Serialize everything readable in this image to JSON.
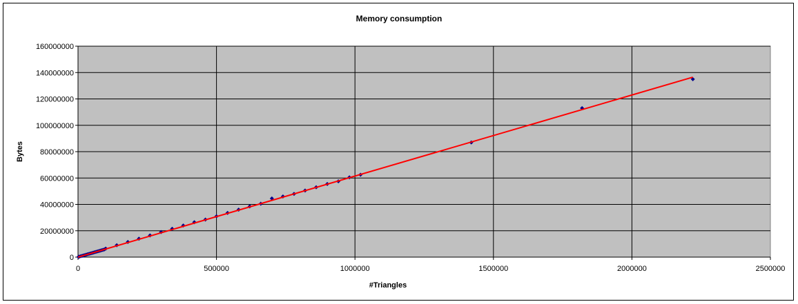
{
  "chart_data": {
    "type": "scatter",
    "title": "Memory consumption",
    "xlabel": "#Triangles",
    "ylabel": "Bytes",
    "xlim": [
      0,
      2500000
    ],
    "ylim": [
      0,
      160000000
    ],
    "x_ticks": [
      "0",
      "500000",
      "1000000",
      "1500000",
      "2000000",
      "2500000"
    ],
    "y_ticks": [
      "0",
      "20000000",
      "40000000",
      "60000000",
      "80000000",
      "100000000",
      "120000000",
      "140000000",
      "160000000"
    ],
    "grid": true,
    "legend": "none",
    "series": [
      {
        "kind": "points",
        "color": "#00008b",
        "x": [
          2000,
          5000,
          10000,
          15000,
          20000,
          25000,
          30000,
          35000,
          40000,
          45000,
          50000,
          55000,
          60000,
          65000,
          70000,
          75000,
          80000,
          85000,
          90000,
          95000,
          100000,
          140000,
          180000,
          220000,
          260000,
          300000,
          340000,
          380000,
          420000,
          460000,
          500000,
          540000,
          580000,
          620000,
          660000,
          700000,
          740000,
          780000,
          820000,
          860000,
          900000,
          940000,
          980000,
          1020000,
          1420000,
          1820000,
          2220000
        ],
        "y": [
          200000,
          400000,
          700000,
          1000000,
          1300000,
          1600000,
          1900000,
          2200000,
          2500000,
          2800000,
          3100000,
          3400000,
          3700000,
          4000000,
          4300000,
          4600000,
          4900000,
          5200000,
          5500000,
          5800000,
          6500000,
          9000000,
          11500000,
          14000000,
          16500000,
          19000000,
          21500000,
          24000000,
          26500000,
          28500000,
          31000000,
          33500000,
          36000000,
          38500000,
          40500000,
          44500000,
          46000000,
          48000000,
          50500000,
          53000000,
          55500000,
          57500000,
          60500000,
          62500000,
          87000000,
          113000000,
          135000000
        ]
      },
      {
        "kind": "trendline",
        "color": "#ff0000",
        "x": [
          0,
          2220000
        ],
        "y": [
          0,
          136500000
        ]
      }
    ]
  }
}
